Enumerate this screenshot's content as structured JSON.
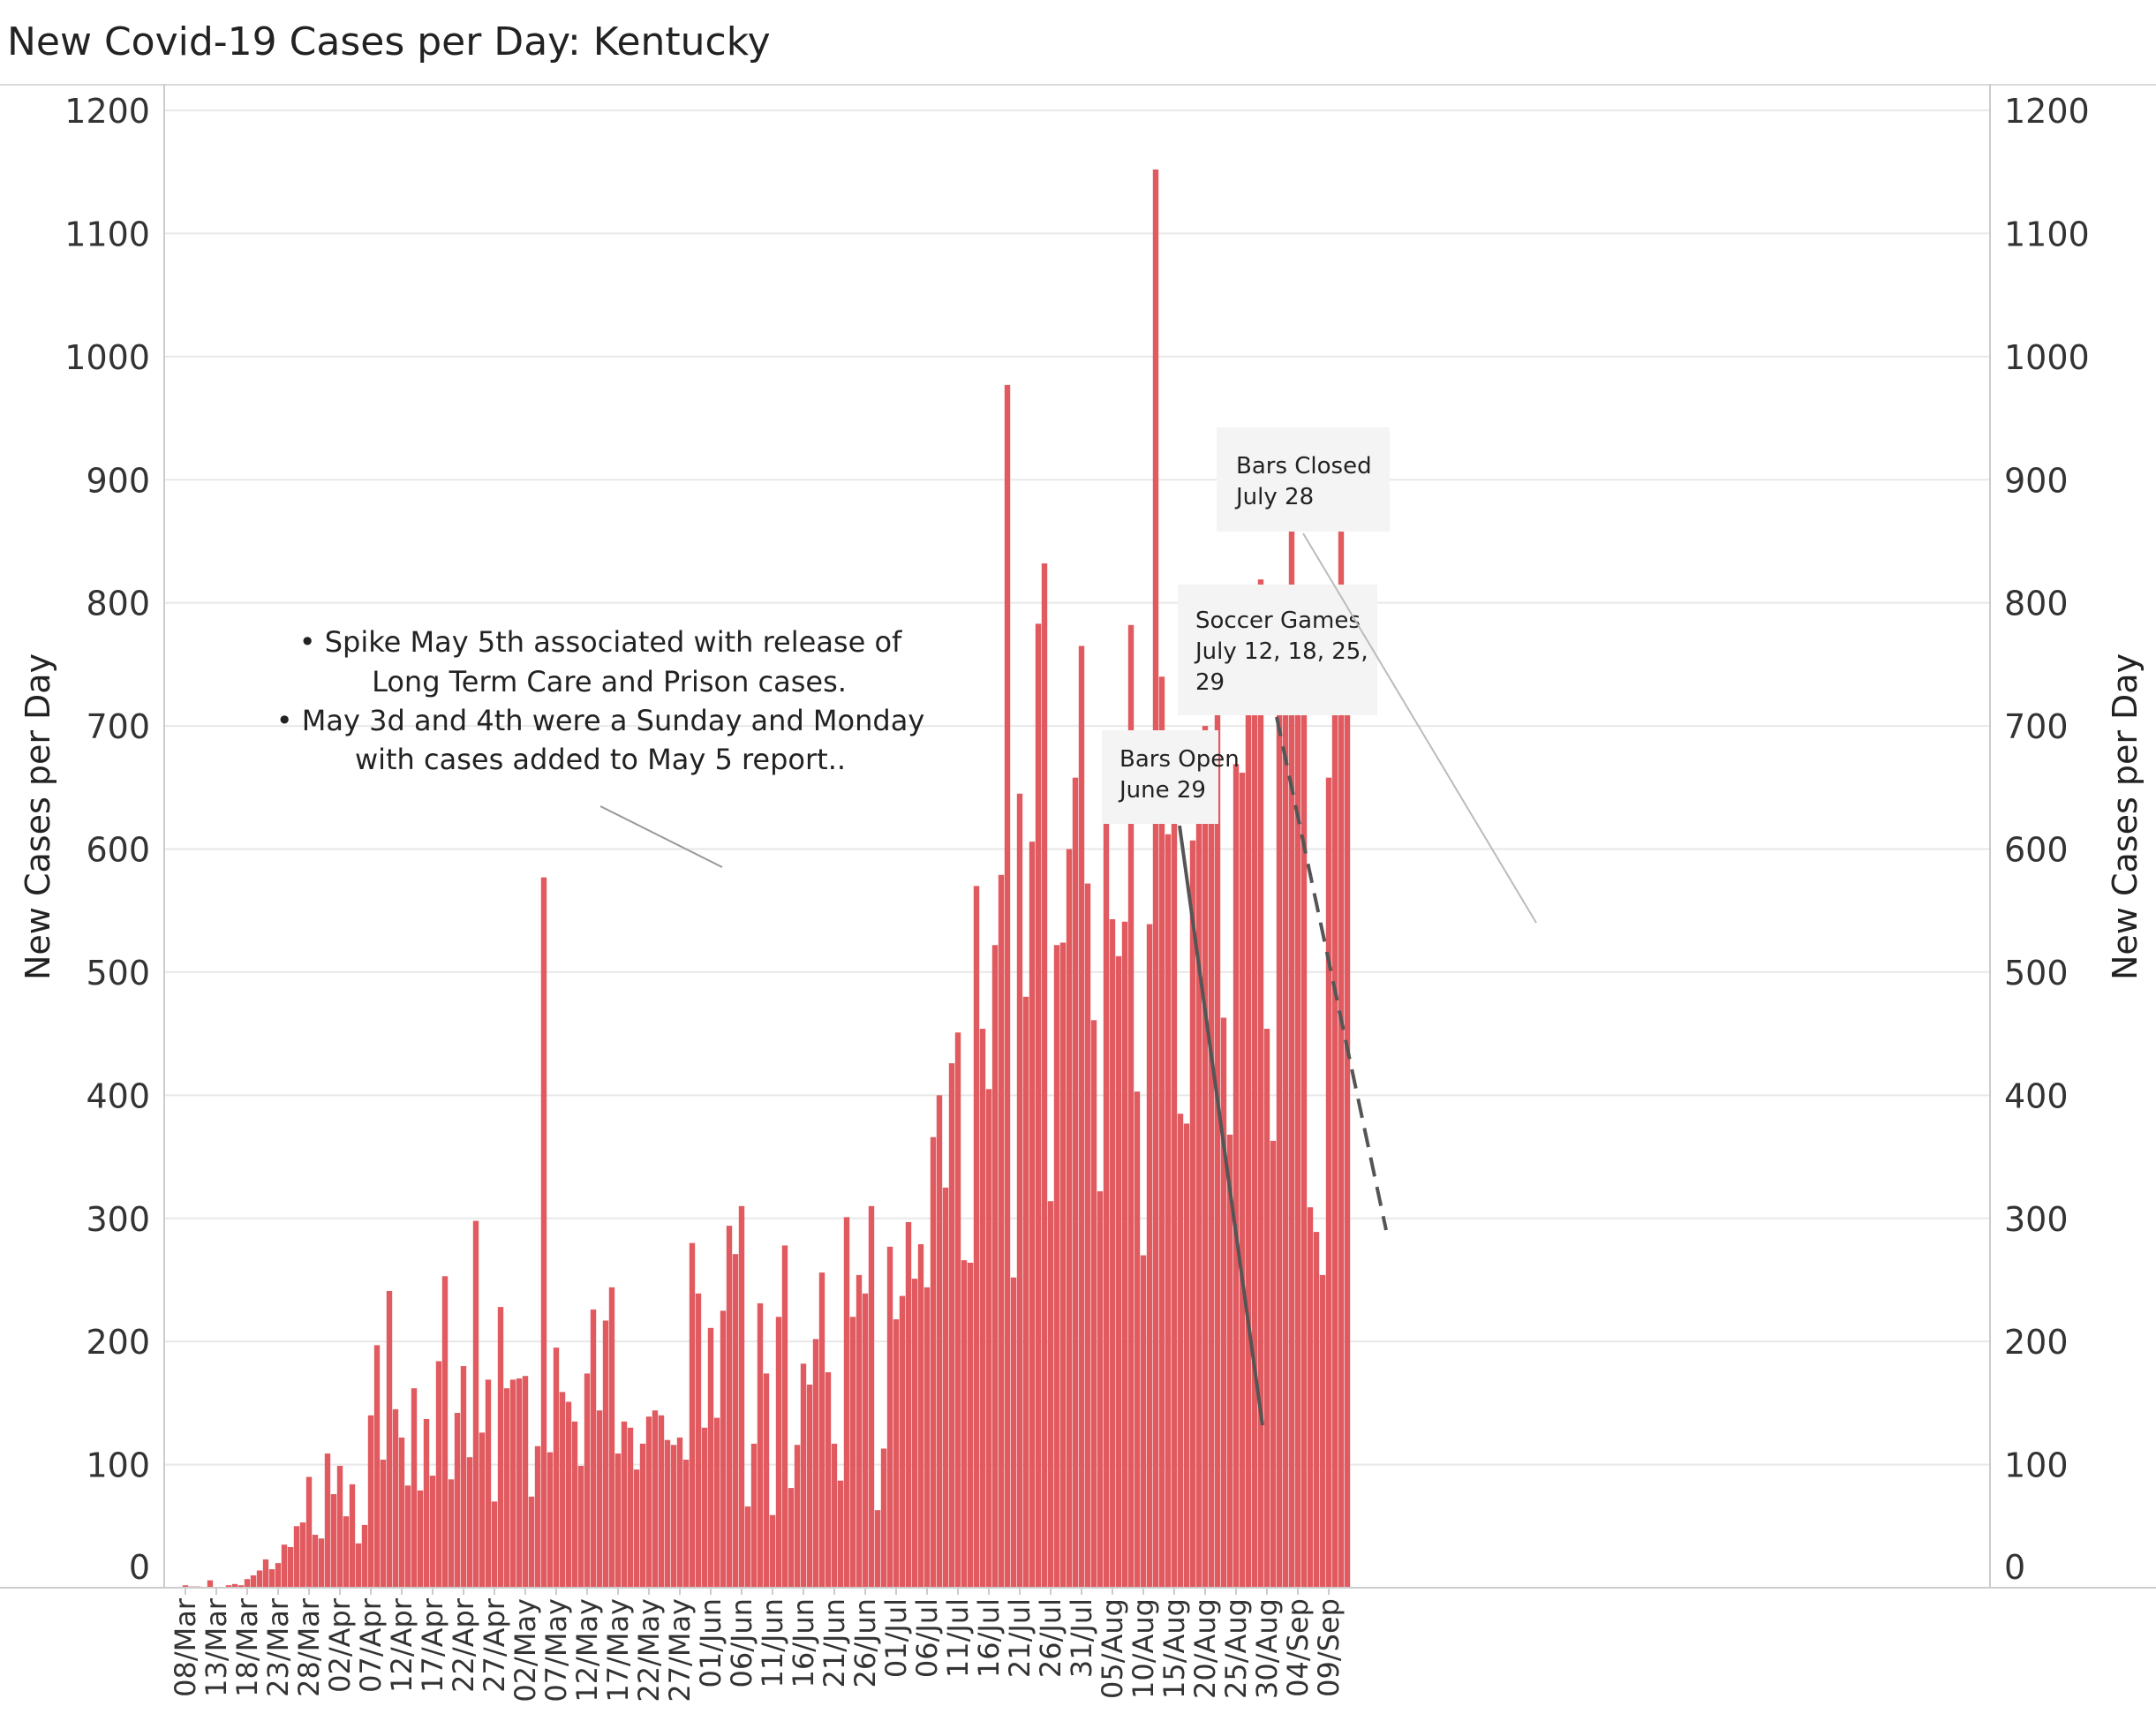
{
  "chart_data": {
    "type": "bar",
    "title": "New Covid-19 Cases per Day: Kentucky",
    "ylabel_left": "New Cases per Day",
    "ylabel_right": "New Cases per Day",
    "ylim": [
      0,
      1200
    ],
    "yticks": [
      0,
      100,
      200,
      300,
      400,
      500,
      600,
      700,
      800,
      900,
      1000,
      1100,
      1200
    ],
    "grid": true,
    "colors": {
      "bar": "#e05a5f",
      "grid": "#e8e8e8",
      "axis": "#cccccc",
      "annotation_line": "#555555",
      "annotation_box": "#f4f4f4"
    },
    "x_tick_labels": [
      "08/Mar",
      "13/Mar",
      "18/Mar",
      "23/Mar",
      "28/Mar",
      "02/Apr",
      "07/Apr",
      "12/Apr",
      "17/Apr",
      "22/Apr",
      "27/Apr",
      "02/May",
      "07/May",
      "12/May",
      "17/May",
      "22/May",
      "27/May",
      "01/Jun",
      "06/Jun",
      "11/Jun",
      "16/Jun",
      "21/Jun",
      "26/Jun",
      "01/Jul",
      "06/Jul",
      "11/Jul",
      "16/Jul",
      "21/Jul",
      "26/Jul",
      "31/Jul",
      "05/Aug",
      "10/Aug",
      "15/Aug",
      "20/Aug",
      "25/Aug",
      "30/Aug",
      "04/Sep",
      "09/Sep"
    ],
    "start_date": "2020-03-08",
    "values": [
      2,
      1,
      1,
      0,
      6,
      0,
      0,
      2,
      3,
      2,
      7,
      10,
      14,
      23,
      15,
      20,
      35,
      33,
      50,
      53,
      90,
      43,
      40,
      109,
      76,
      99,
      58,
      84,
      36,
      51,
      140,
      197,
      104,
      241,
      145,
      122,
      83,
      162,
      79,
      137,
      91,
      184,
      253,
      88,
      142,
      180,
      106,
      298,
      126,
      169,
      70,
      228,
      162,
      169,
      170,
      172,
      74,
      115,
      577,
      110,
      195,
      159,
      151,
      135,
      99,
      174,
      226,
      144,
      217,
      244,
      109,
      135,
      130,
      96,
      117,
      139,
      144,
      140,
      120,
      116,
      122,
      104,
      280,
      239,
      130,
      211,
      138,
      225,
      294,
      271,
      310,
      66,
      117,
      231,
      174,
      59,
      220,
      278,
      81,
      116,
      182,
      165,
      202,
      256,
      175,
      117,
      87,
      301,
      220,
      254,
      239,
      310,
      63,
      113,
      277,
      218,
      237,
      297,
      251,
      279,
      244,
      366,
      400,
      325,
      426,
      451,
      266,
      264,
      570,
      454,
      405,
      522,
      579,
      977,
      252,
      645,
      480,
      606,
      783,
      832,
      314,
      522,
      524,
      600,
      658,
      765,
      572,
      461,
      322,
      688,
      543,
      513,
      541,
      782,
      403,
      270,
      539,
      1152,
      740,
      612,
      633,
      385,
      377,
      607,
      626,
      700,
      639,
      801,
      463,
      368,
      669,
      662,
      747,
      779,
      819,
      454,
      363,
      789,
      806,
      893,
      792,
      787,
      309,
      289,
      254,
      658,
      795,
      931,
      712
    ],
    "annotations": [
      {
        "lines": [
          "• Spike May 5th associated with release of",
          "Long Term Care and Prison cases.",
          "• May 3d and 4th were a Sunday and Monday",
          "with cases added to May 5 report.."
        ]
      },
      {
        "lines": [
          "Bars Open",
          "June 29"
        ]
      },
      {
        "lines": [
          "Soccer Games",
          "July 12, 18, 25,",
          "29"
        ]
      },
      {
        "lines": [
          "Bars Closed",
          "July 28"
        ]
      }
    ]
  }
}
